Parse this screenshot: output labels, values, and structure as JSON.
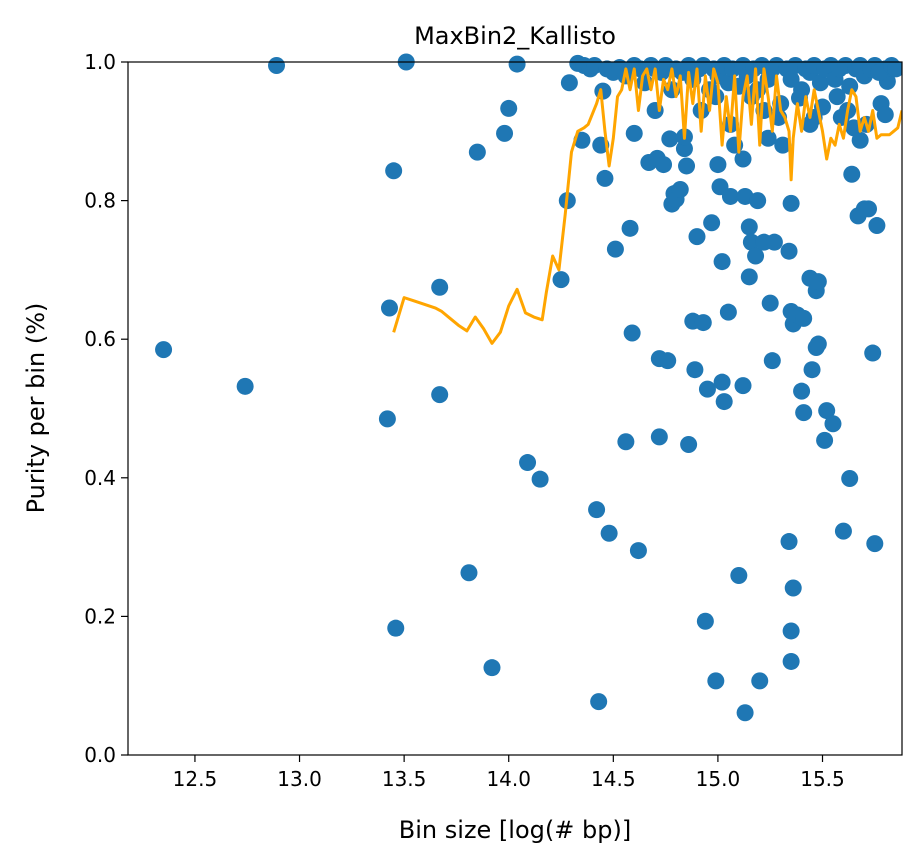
{
  "chart_data": {
    "type": "scatter",
    "title": "MaxBin2_Kallisto",
    "xlabel": "Bin size [log(# bp)]",
    "ylabel": "Purity per bin (%)",
    "xlim": [
      12.18,
      15.88
    ],
    "ylim": [
      0.0,
      1.0
    ],
    "x_ticks": [
      "12.5",
      "13.0",
      "13.5",
      "14.0",
      "14.5",
      "15.0",
      "15.5"
    ],
    "y_ticks": [
      "0.0",
      "0.2",
      "0.4",
      "0.6",
      "0.8",
      "1.0"
    ],
    "grid": false,
    "colors": {
      "points": "#1f77b4",
      "trend": "#ffa500"
    },
    "series": [
      {
        "type": "scatter",
        "points": [
          [
            12.35,
            0.585
          ],
          [
            12.74,
            0.532
          ],
          [
            12.89,
            0.995
          ],
          [
            13.42,
            0.485
          ],
          [
            13.43,
            0.645
          ],
          [
            13.45,
            0.843
          ],
          [
            13.46,
            0.183
          ],
          [
            13.51,
            1.0
          ],
          [
            13.67,
            0.675
          ],
          [
            13.67,
            0.52
          ],
          [
            13.81,
            0.263
          ],
          [
            13.85,
            0.87
          ],
          [
            13.92,
            0.126
          ],
          [
            13.98,
            0.897
          ],
          [
            14.0,
            0.933
          ],
          [
            14.04,
            0.997
          ],
          [
            14.09,
            0.422
          ],
          [
            14.15,
            0.398
          ],
          [
            14.25,
            0.686
          ],
          [
            14.28,
            0.8
          ],
          [
            14.29,
            0.97
          ],
          [
            14.33,
            0.998
          ],
          [
            14.35,
            0.887
          ],
          [
            14.42,
            0.354
          ],
          [
            14.43,
            0.077
          ],
          [
            14.44,
            0.88
          ],
          [
            14.45,
            0.958
          ],
          [
            14.46,
            0.832
          ],
          [
            14.48,
            0.32
          ],
          [
            14.51,
            0.73
          ],
          [
            14.56,
            0.452
          ],
          [
            14.58,
            0.76
          ],
          [
            14.59,
            0.609
          ],
          [
            14.6,
            0.897
          ],
          [
            14.62,
            0.295
          ],
          [
            14.67,
            0.855
          ],
          [
            14.71,
            0.861
          ],
          [
            14.72,
            0.572
          ],
          [
            14.72,
            0.459
          ],
          [
            14.74,
            0.852
          ],
          [
            14.76,
            0.569
          ],
          [
            14.77,
            0.889
          ],
          [
            14.78,
            0.795
          ],
          [
            14.79,
            0.81
          ],
          [
            14.8,
            0.802
          ],
          [
            14.82,
            0.816
          ],
          [
            14.84,
            0.875
          ],
          [
            14.84,
            0.892
          ],
          [
            14.85,
            0.85
          ],
          [
            14.86,
            0.448
          ],
          [
            14.88,
            0.626
          ],
          [
            14.89,
            0.556
          ],
          [
            14.9,
            0.748
          ],
          [
            14.93,
            0.624
          ],
          [
            14.94,
            0.193
          ],
          [
            14.95,
            0.528
          ],
          [
            14.97,
            0.768
          ],
          [
            14.99,
            0.107
          ],
          [
            15.0,
            0.852
          ],
          [
            15.01,
            0.82
          ],
          [
            15.02,
            0.712
          ],
          [
            15.02,
            0.538
          ],
          [
            15.03,
            0.51
          ],
          [
            15.05,
            0.639
          ],
          [
            15.06,
            0.806
          ],
          [
            15.08,
            0.88
          ],
          [
            15.1,
            0.259
          ],
          [
            15.12,
            0.533
          ],
          [
            15.12,
            0.86
          ],
          [
            15.13,
            0.061
          ],
          [
            15.13,
            0.806
          ],
          [
            15.15,
            0.762
          ],
          [
            15.15,
            0.69
          ],
          [
            15.16,
            0.74
          ],
          [
            15.18,
            0.72
          ],
          [
            15.19,
            0.8
          ],
          [
            15.2,
            0.107
          ],
          [
            15.22,
            0.74
          ],
          [
            15.24,
            0.89
          ],
          [
            15.25,
            0.652
          ],
          [
            15.26,
            0.569
          ],
          [
            15.27,
            0.74
          ],
          [
            15.31,
            0.88
          ],
          [
            15.34,
            0.308
          ],
          [
            15.34,
            0.727
          ],
          [
            15.35,
            0.64
          ],
          [
            15.35,
            0.796
          ],
          [
            15.35,
            0.179
          ],
          [
            15.35,
            0.135
          ],
          [
            15.36,
            0.622
          ],
          [
            15.36,
            0.241
          ],
          [
            15.38,
            0.635
          ],
          [
            15.39,
            0.948
          ],
          [
            15.4,
            0.525
          ],
          [
            15.41,
            0.63
          ],
          [
            15.41,
            0.494
          ],
          [
            15.44,
            0.688
          ],
          [
            15.45,
            0.556
          ],
          [
            15.46,
            0.92
          ],
          [
            15.47,
            0.588
          ],
          [
            15.47,
            0.67
          ],
          [
            15.48,
            0.593
          ],
          [
            15.48,
            0.683
          ],
          [
            15.5,
            0.935
          ],
          [
            15.51,
            0.454
          ],
          [
            15.52,
            0.497
          ],
          [
            15.55,
            0.478
          ],
          [
            15.59,
            0.92
          ],
          [
            15.6,
            0.323
          ],
          [
            15.63,
            0.399
          ],
          [
            15.64,
            0.838
          ],
          [
            15.65,
            0.905
          ],
          [
            15.67,
            0.778
          ],
          [
            15.68,
            0.887
          ],
          [
            15.7,
            0.788
          ],
          [
            15.71,
            0.91
          ],
          [
            15.72,
            0.788
          ],
          [
            15.74,
            0.58
          ],
          [
            15.75,
            0.305
          ],
          [
            15.76,
            0.764
          ],
          [
            15.78,
            0.94
          ],
          [
            15.8,
            0.924
          ],
          [
            15.81,
            0.972
          ],
          [
            15.8,
            0.99
          ],
          [
            14.36,
            0.995
          ],
          [
            14.39,
            0.99
          ],
          [
            14.41,
            0.995
          ],
          [
            14.47,
            0.99
          ],
          [
            14.5,
            0.985
          ],
          [
            14.53,
            0.992
          ],
          [
            14.56,
            0.98
          ],
          [
            14.6,
            0.995
          ],
          [
            14.63,
            0.99
          ],
          [
            14.65,
            0.97
          ],
          [
            14.68,
            0.995
          ],
          [
            14.7,
            0.99
          ],
          [
            14.73,
            0.985
          ],
          [
            14.75,
            0.995
          ],
          [
            14.78,
            0.96
          ],
          [
            14.8,
            0.99
          ],
          [
            14.83,
            0.985
          ],
          [
            14.86,
            0.995
          ],
          [
            14.88,
            0.975
          ],
          [
            14.91,
            0.99
          ],
          [
            14.93,
            0.995
          ],
          [
            14.96,
            0.96
          ],
          [
            14.98,
            0.99
          ],
          [
            15.0,
            0.98
          ],
          [
            15.03,
            0.995
          ],
          [
            15.05,
            0.97
          ],
          [
            15.07,
            0.99
          ],
          [
            15.1,
            0.965
          ],
          [
            15.12,
            0.995
          ],
          [
            15.14,
            0.98
          ],
          [
            15.17,
            0.99
          ],
          [
            15.19,
            0.96
          ],
          [
            15.21,
            0.995
          ],
          [
            15.24,
            0.975
          ],
          [
            15.26,
            0.99
          ],
          [
            15.28,
            0.995
          ],
          [
            15.3,
            0.94
          ],
          [
            15.33,
            0.99
          ],
          [
            15.35,
            0.975
          ],
          [
            15.37,
            0.995
          ],
          [
            15.4,
            0.96
          ],
          [
            15.42,
            0.99
          ],
          [
            15.44,
            0.985
          ],
          [
            15.46,
            0.995
          ],
          [
            15.49,
            0.97
          ],
          [
            15.51,
            0.99
          ],
          [
            15.54,
            0.995
          ],
          [
            15.56,
            0.975
          ],
          [
            15.58,
            0.99
          ],
          [
            15.61,
            0.995
          ],
          [
            15.63,
            0.965
          ],
          [
            15.66,
            0.99
          ],
          [
            15.68,
            0.995
          ],
          [
            15.7,
            0.98
          ],
          [
            15.73,
            0.99
          ],
          [
            15.75,
            0.995
          ],
          [
            15.77,
            0.985
          ],
          [
            15.83,
            0.995
          ],
          [
            15.85,
            0.99
          ],
          [
            14.92,
            0.93
          ],
          [
            15.06,
            0.91
          ],
          [
            15.16,
            0.95
          ],
          [
            15.29,
            0.92
          ],
          [
            15.44,
            0.91
          ],
          [
            14.7,
            0.93
          ],
          [
            14.99,
            0.95
          ],
          [
            15.22,
            0.93
          ],
          [
            15.57,
            0.95
          ],
          [
            15.62,
            0.93
          ]
        ]
      },
      {
        "type": "line",
        "points": [
          [
            13.45,
            0.61
          ],
          [
            13.5,
            0.66
          ],
          [
            13.55,
            0.655
          ],
          [
            13.6,
            0.65
          ],
          [
            13.65,
            0.645
          ],
          [
            13.68,
            0.64
          ],
          [
            13.72,
            0.63
          ],
          [
            13.76,
            0.62
          ],
          [
            13.8,
            0.612
          ],
          [
            13.84,
            0.632
          ],
          [
            13.88,
            0.615
          ],
          [
            13.92,
            0.594
          ],
          [
            13.96,
            0.61
          ],
          [
            14.0,
            0.648
          ],
          [
            14.04,
            0.672
          ],
          [
            14.08,
            0.638
          ],
          [
            14.12,
            0.632
          ],
          [
            14.16,
            0.628
          ],
          [
            14.18,
            0.668
          ],
          [
            14.21,
            0.72
          ],
          [
            14.24,
            0.7
          ],
          [
            14.27,
            0.78
          ],
          [
            14.3,
            0.87
          ],
          [
            14.33,
            0.9
          ],
          [
            14.36,
            0.905
          ],
          [
            14.38,
            0.91
          ],
          [
            14.4,
            0.925
          ],
          [
            14.42,
            0.94
          ],
          [
            14.44,
            0.96
          ],
          [
            14.46,
            0.9
          ],
          [
            14.48,
            0.85
          ],
          [
            14.5,
            0.89
          ],
          [
            14.52,
            0.95
          ],
          [
            14.54,
            0.96
          ],
          [
            14.56,
            0.99
          ],
          [
            14.58,
            0.96
          ],
          [
            14.6,
            0.99
          ],
          [
            14.62,
            0.93
          ],
          [
            14.64,
            0.98
          ],
          [
            14.66,
            0.99
          ],
          [
            14.68,
            0.96
          ],
          [
            14.7,
            0.99
          ],
          [
            14.72,
            0.93
          ],
          [
            14.74,
            0.975
          ],
          [
            14.76,
            0.96
          ],
          [
            14.78,
            0.99
          ],
          [
            14.8,
            0.95
          ],
          [
            14.82,
            0.98
          ],
          [
            14.84,
            0.89
          ],
          [
            14.86,
            0.985
          ],
          [
            14.88,
            0.94
          ],
          [
            14.9,
            0.99
          ],
          [
            14.92,
            0.9
          ],
          [
            14.94,
            0.98
          ],
          [
            14.96,
            0.93
          ],
          [
            14.98,
            0.99
          ],
          [
            15.0,
            0.97
          ],
          [
            15.02,
            0.88
          ],
          [
            15.04,
            0.95
          ],
          [
            15.06,
            0.9
          ],
          [
            15.08,
            0.98
          ],
          [
            15.1,
            0.87
          ],
          [
            15.12,
            0.95
          ],
          [
            15.14,
            0.98
          ],
          [
            15.16,
            0.91
          ],
          [
            15.18,
            0.99
          ],
          [
            15.2,
            0.88
          ],
          [
            15.22,
            0.99
          ],
          [
            15.24,
            0.95
          ],
          [
            15.26,
            0.9
          ],
          [
            15.28,
            0.98
          ],
          [
            15.3,
            0.93
          ],
          [
            15.32,
            0.92
          ],
          [
            15.34,
            0.9
          ],
          [
            15.35,
            0.83
          ],
          [
            15.36,
            0.89
          ],
          [
            15.38,
            0.94
          ],
          [
            15.4,
            0.9
          ],
          [
            15.42,
            0.95
          ],
          [
            15.44,
            0.92
          ],
          [
            15.46,
            0.96
          ],
          [
            15.48,
            0.93
          ],
          [
            15.5,
            0.9
          ],
          [
            15.52,
            0.86
          ],
          [
            15.54,
            0.89
          ],
          [
            15.56,
            0.88
          ],
          [
            15.58,
            0.91
          ],
          [
            15.6,
            0.89
          ],
          [
            15.62,
            0.93
          ],
          [
            15.64,
            0.96
          ],
          [
            15.66,
            0.95
          ],
          [
            15.68,
            0.9
          ],
          [
            15.7,
            0.92
          ],
          [
            15.72,
            0.9
          ],
          [
            15.74,
            0.93
          ],
          [
            15.76,
            0.89
          ],
          [
            15.78,
            0.895
          ],
          [
            15.8,
            0.895
          ],
          [
            15.82,
            0.895
          ],
          [
            15.84,
            0.9
          ],
          [
            15.86,
            0.905
          ],
          [
            15.88,
            0.93
          ]
        ]
      }
    ]
  }
}
